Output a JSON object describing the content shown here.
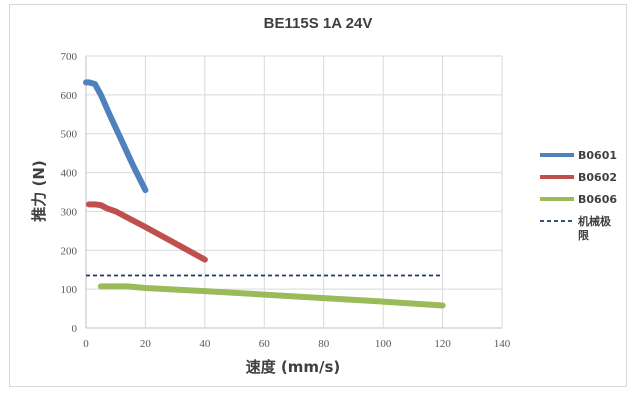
{
  "chart_data": {
    "type": "line",
    "title": "BE115S 1A 24V",
    "xlabel": "速度 (mm/s)",
    "ylabel": "推力 (N)",
    "xlim": [
      0,
      140
    ],
    "ylim": [
      0,
      700
    ],
    "xticks": [
      "0",
      "20",
      "40",
      "60",
      "80",
      "100",
      "120",
      "140"
    ],
    "yticks": [
      "0",
      "100",
      "200",
      "300",
      "400",
      "500",
      "600",
      "700"
    ],
    "grid": true,
    "legend_position": "right",
    "series": [
      {
        "name": "B0601",
        "color": "#4f81bd",
        "style": "solid",
        "x": [
          0,
          1,
          3,
          5,
          8,
          12,
          16,
          20
        ],
        "y": [
          632,
          632,
          628,
          600,
          548,
          482,
          416,
          355
        ]
      },
      {
        "name": "B0602",
        "color": "#c0504d",
        "style": "solid",
        "x": [
          1,
          3,
          5,
          7,
          10,
          20,
          30,
          40
        ],
        "y": [
          318,
          318,
          316,
          308,
          300,
          260,
          218,
          176
        ]
      },
      {
        "name": "B0606",
        "color": "#9bbb59",
        "style": "solid",
        "x": [
          5,
          14,
          20,
          40,
          60,
          80,
          100,
          120
        ],
        "y": [
          107,
          107,
          103,
          95,
          86,
          77,
          68,
          58
        ]
      },
      {
        "name": "机械极限",
        "color": "#1f3864",
        "style": "dashed",
        "x": [
          0,
          120
        ],
        "y": [
          135,
          135
        ]
      }
    ]
  }
}
